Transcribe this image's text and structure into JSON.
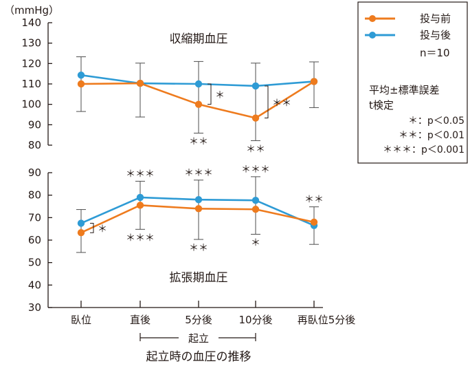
{
  "chart_data": {
    "type": "line",
    "unit_label": "（mmHg）",
    "categories": [
      "臥位",
      "直後",
      "5分後",
      "10分後",
      "再臥位5分後"
    ],
    "bracket_label": "起立",
    "xlabel": "起立時の血圧の推移",
    "colors": {
      "before": "#ee7b1e",
      "after": "#2e9bd5",
      "error": "#4d4d4d",
      "axis": "#231815"
    },
    "legend": {
      "series_before": "投与前",
      "series_after": "投与後",
      "n": "n＝10",
      "stat_title": "平均±標準誤差",
      "test": "t検定",
      "sig_levels": [
        "＊：p＜0.05",
        "＊＊：p＜0.01",
        "＊＊＊：p＜0.001"
      ]
    },
    "panels": [
      {
        "title": "収縮期血圧",
        "ylim": [
          80,
          140
        ],
        "yticks": [
          "80",
          "90",
          "100",
          "110",
          "120",
          "130",
          "140"
        ],
        "series": [
          {
            "name": "投与前",
            "key": "before",
            "values": [
              110,
              110.3,
              100,
              93.3,
              111.2
            ]
          },
          {
            "name": "投与後",
            "key": "after",
            "values": [
              114.3,
              110.3,
              110,
              109,
              111.2
            ]
          }
        ],
        "errors": [
          {
            "x": 0,
            "low": 96.5,
            "high": 123.3
          },
          {
            "x": 1,
            "low": 93.8,
            "high": 120.2
          },
          {
            "x": 2,
            "low": 85.9,
            "high": 121.0
          },
          {
            "x": 3,
            "low": 82.2,
            "high": 120.2
          },
          {
            "x": 4,
            "low": 98.4,
            "high": 120.8
          }
        ],
        "annotations": [
          {
            "x": 2,
            "pos": "below",
            "text": "＊＊"
          },
          {
            "x": 3,
            "pos": "below",
            "text": "＊＊"
          },
          {
            "x": 2,
            "pos": "bracket",
            "text": "＊"
          },
          {
            "x": 3,
            "pos": "bracket",
            "text": "＊＊"
          }
        ]
      },
      {
        "title": "拡張期血圧",
        "ylim": [
          30,
          90
        ],
        "yticks": [
          "30",
          "40",
          "50",
          "60",
          "70",
          "80",
          "90"
        ],
        "series": [
          {
            "name": "投与前",
            "key": "before",
            "values": [
              63.3,
              75.5,
              74,
              73.7,
              68
            ]
          },
          {
            "name": "投与後",
            "key": "after",
            "values": [
              67.5,
              79,
              78,
              77.7,
              66.5
            ]
          }
        ],
        "errors": [
          {
            "x": 0,
            "low": 54.5,
            "high": 73.6
          },
          {
            "x": 1,
            "low": 64.8,
            "high": 86.2
          },
          {
            "x": 2,
            "low": 60.3,
            "high": 86.7
          },
          {
            "x": 3,
            "low": 62.6,
            "high": 88.2
          },
          {
            "x": 4,
            "low": 58.1,
            "high": 74.8
          }
        ],
        "annotations": [
          {
            "x": 1,
            "pos": "above",
            "text": "＊＊＊"
          },
          {
            "x": 2,
            "pos": "above",
            "text": "＊＊＊"
          },
          {
            "x": 3,
            "pos": "above",
            "text": "＊＊＊"
          },
          {
            "x": 4,
            "pos": "above",
            "text": "＊＊"
          },
          {
            "x": 1,
            "pos": "below",
            "text": "＊＊＊"
          },
          {
            "x": 2,
            "pos": "below",
            "text": "＊＊"
          },
          {
            "x": 3,
            "pos": "below",
            "text": "＊"
          },
          {
            "x": 0,
            "pos": "bracket",
            "text": "＊"
          }
        ]
      }
    ]
  }
}
